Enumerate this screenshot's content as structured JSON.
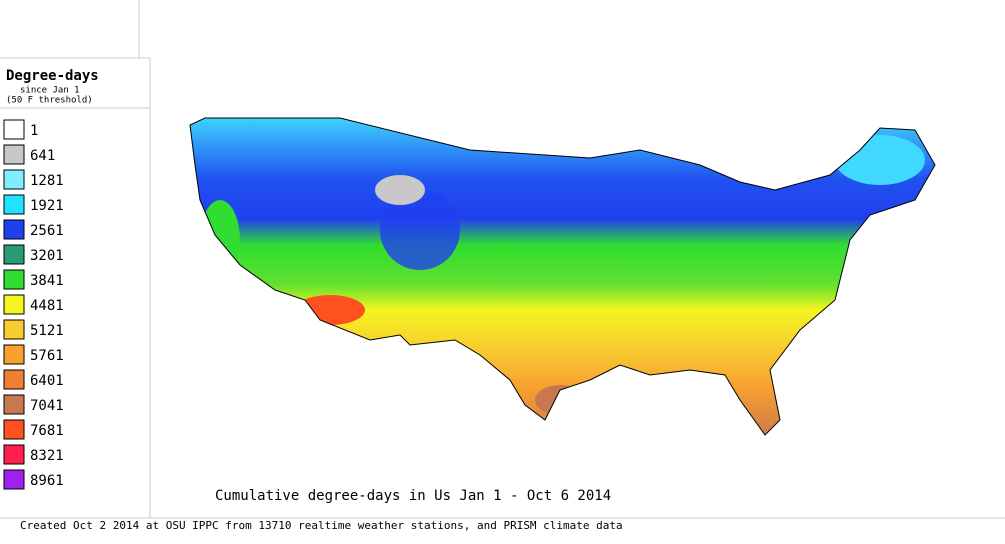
{
  "legend": {
    "title": "Degree-days",
    "subtitle": "since Jan 1",
    "threshold": "(50 F threshold)",
    "items": [
      {
        "value": 1,
        "color": "#ffffff"
      },
      {
        "value": 641,
        "color": "#c8c8c8"
      },
      {
        "value": 1281,
        "color": "#80eeff"
      },
      {
        "value": 1921,
        "color": "#20e4ff"
      },
      {
        "value": 2561,
        "color": "#2040f0"
      },
      {
        "value": 3201,
        "color": "#2a9a78"
      },
      {
        "value": 3841,
        "color": "#30dd30"
      },
      {
        "value": 4481,
        "color": "#f4f420"
      },
      {
        "value": 5121,
        "color": "#f8cc30"
      },
      {
        "value": 5761,
        "color": "#f8a030"
      },
      {
        "value": 6401,
        "color": "#f08030"
      },
      {
        "value": 7041,
        "color": "#c87850"
      },
      {
        "value": 7681,
        "color": "#ff5020"
      },
      {
        "value": 8321,
        "color": "#ff2050"
      },
      {
        "value": 8961,
        "color": "#a020f0"
      }
    ]
  },
  "map": {
    "title": "Cumulative degree-days in Us  Jan 1 - Oct 6 2014"
  },
  "footer": "Created Oct 2 2014 at OSU IPPC from 13710 realtime weather stations, and PRISM climate data"
}
